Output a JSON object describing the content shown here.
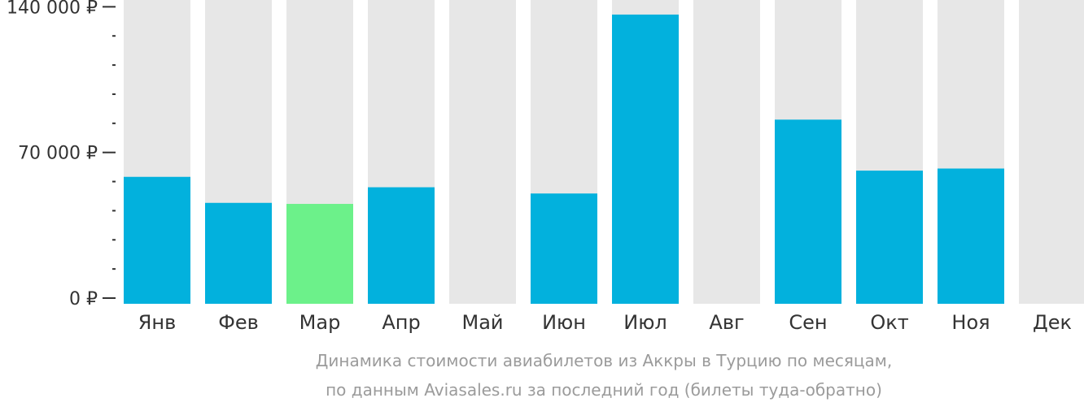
{
  "chart_data": {
    "type": "bar",
    "caption": [
      "Динамика стоимости авиабилетов из Аккры в Турцию по месяцам,",
      "по данным Aviasales.ru за последний год (билеты туда-обратно)"
    ],
    "categories": [
      "Янв",
      "Фев",
      "Мар",
      "Апр",
      "Май",
      "Июн",
      "Июл",
      "Авг",
      "Сен",
      "Окт",
      "Ноя",
      "Дек"
    ],
    "values": [
      61000,
      48500,
      48000,
      56000,
      null,
      53000,
      139000,
      null,
      88500,
      64000,
      65000,
      null
    ],
    "highlight_index": 2,
    "ylim": [
      0,
      146000
    ],
    "yticks": [
      {
        "value": 0,
        "label": "0 ₽"
      },
      {
        "value": 70000,
        "label": "70 000 ₽"
      },
      {
        "value": 140000,
        "label": "140 000 ₽"
      }
    ],
    "minor_step": 14000,
    "grid": false,
    "colors": {
      "bar": "#02b1dd",
      "highlight": "#6cf18a",
      "background_bar": "#e7e7e7",
      "text": "#333333",
      "caption": "#9b9b9b"
    }
  }
}
